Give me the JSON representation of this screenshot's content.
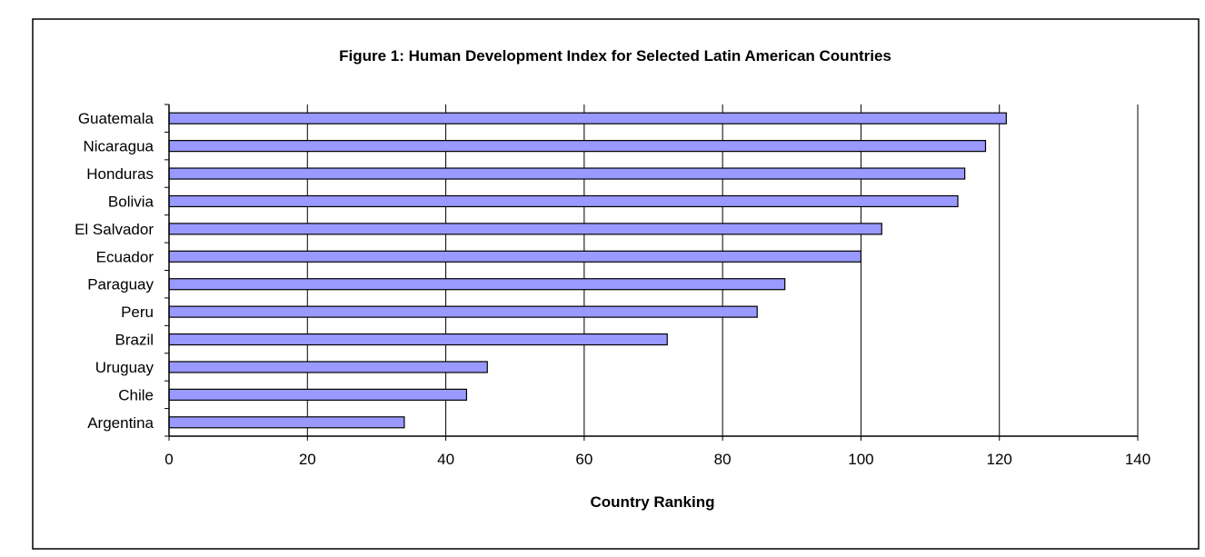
{
  "chart_data": {
    "type": "bar",
    "orientation": "horizontal",
    "title": "Figure 1: Human Development Index for Selected Latin American Countries",
    "xlabel": "Country Ranking",
    "ylabel": "",
    "categories": [
      "Guatemala",
      "Nicaragua",
      "Honduras",
      "Bolivia",
      "El Salvador",
      "Ecuador",
      "Paraguay",
      "Peru",
      "Brazil",
      "Uruguay",
      "Chile",
      "Argentina"
    ],
    "values": [
      121,
      118,
      115,
      114,
      103,
      100,
      89,
      85,
      72,
      46,
      43,
      34
    ],
    "xlim": [
      0,
      140
    ],
    "xticks": [
      0,
      20,
      40,
      60,
      80,
      100,
      120,
      140
    ],
    "grid": "vertical",
    "legend": "none",
    "colors": {
      "bar_fill": "#9999ff",
      "bar_stroke": "#000000",
      "grid": "#000000",
      "frame": "#000000",
      "background": "#ffffff"
    }
  }
}
